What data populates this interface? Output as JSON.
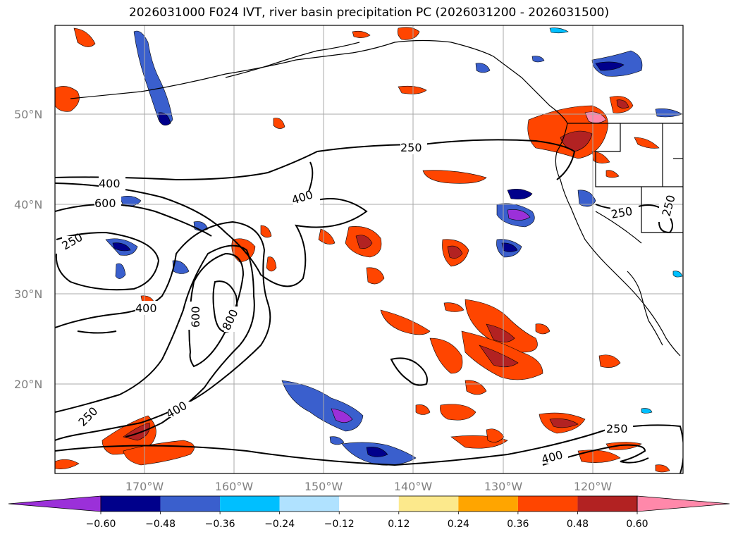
{
  "title": "2026031000 F024 IVT, river basin precipitation PC (2026031200 - 2026031500)",
  "map": {
    "lat_labels": [
      "50°N",
      "40°N",
      "30°N",
      "20°N"
    ],
    "lon_labels": [
      "170°W",
      "160°W",
      "150°W",
      "140°W",
      "130°W",
      "120°W"
    ],
    "ivt_contour_labels": [
      "250",
      "400",
      "600",
      "400",
      "250",
      "400",
      "600",
      "800",
      "400",
      "250",
      "400",
      "250",
      "250",
      "250",
      "400"
    ]
  },
  "colorbar": {
    "ticks": [
      "−0.60",
      "−0.48",
      "−0.36",
      "−0.24",
      "−0.12",
      "0.12",
      "0.24",
      "0.36",
      "0.48",
      "0.60"
    ],
    "colors": [
      "#9b30d9",
      "#00008b",
      "#3a5fcd",
      "#00bfff",
      "#b0e2ff",
      "#ffffff",
      "#fce98c",
      "#ffa500",
      "#ff4500",
      "#b22222",
      "#ff88aa"
    ]
  },
  "colors": {
    "coastline": "#000000",
    "gridline": "#a9a9a9",
    "label_gray": "#808080"
  }
}
